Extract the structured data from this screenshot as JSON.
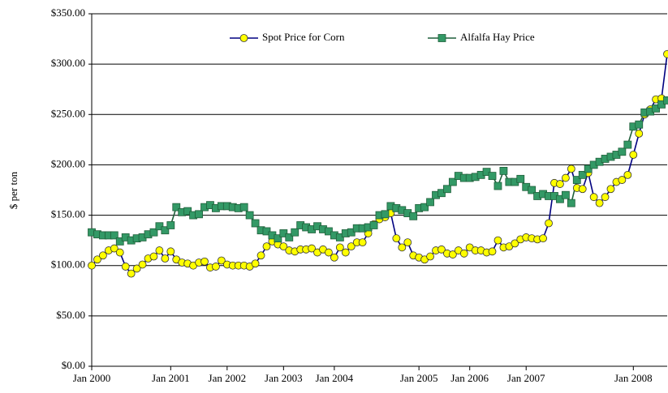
{
  "chart_data": {
    "type": "line",
    "y_label": "$ per ton",
    "categories": [
      "Jan 2000",
      null,
      null,
      null,
      null,
      null,
      null,
      null,
      null,
      null,
      null,
      null,
      null,
      null,
      "Jan 2001",
      null,
      null,
      null,
      null,
      null,
      null,
      null,
      null,
      null,
      "Jan 2002",
      null,
      null,
      null,
      null,
      null,
      null,
      null,
      null,
      null,
      "Jan 2003",
      null,
      null,
      null,
      null,
      null,
      null,
      null,
      null,
      "Jan 2004",
      null,
      null,
      null,
      null,
      null,
      null,
      null,
      null,
      null,
      null,
      null,
      null,
      null,
      null,
      "Jan 2005",
      null,
      null,
      null,
      null,
      null,
      null,
      null,
      null,
      "Jan 2006",
      null,
      null,
      null,
      null,
      null,
      null,
      null,
      null,
      null,
      "Jan 2007",
      null,
      null,
      null,
      null,
      null,
      null,
      null,
      null,
      null,
      null,
      null,
      null,
      null,
      null,
      null,
      null,
      null,
      null,
      "Jan 2008",
      null,
      null,
      null,
      null,
      null,
      null
    ],
    "series": [
      {
        "name": "Spot Price for Corn",
        "color": "#000080",
        "marker_color": "#ffff00",
        "marker": "circle",
        "values": [
          100,
          106,
          110,
          115,
          117,
          113,
          99,
          92,
          97,
          101,
          107,
          109,
          115,
          107,
          114,
          106,
          103,
          102,
          100,
          103,
          104,
          98,
          99,
          105,
          101,
          100,
          100,
          100,
          99,
          102,
          110,
          119,
          124,
          121,
          119,
          115,
          114,
          116,
          116,
          117,
          113,
          116,
          113,
          108,
          118,
          113,
          119,
          123,
          123,
          132,
          141,
          146,
          148,
          152,
          127,
          118,
          123,
          110,
          108,
          106,
          109,
          115,
          116,
          112,
          111,
          115,
          112,
          118,
          115,
          115,
          113,
          114,
          125,
          118,
          119,
          122,
          126,
          128,
          127,
          126,
          127,
          142,
          182,
          181,
          187,
          196,
          177,
          176,
          192,
          168,
          162,
          168,
          176,
          183,
          185,
          190,
          210,
          231,
          250,
          255,
          265,
          266,
          310
        ]
      },
      {
        "name": "Alfalfa Hay Price",
        "color": "#1f5f3a",
        "marker_color": "#339966",
        "marker": "square",
        "values": [
          133,
          131,
          130,
          130,
          130,
          124,
          128,
          125,
          127,
          128,
          131,
          133,
          139,
          135,
          140,
          158,
          153,
          154,
          150,
          151,
          158,
          160,
          157,
          159,
          159,
          158,
          157,
          158,
          150,
          142,
          135,
          134,
          130,
          127,
          132,
          128,
          133,
          140,
          138,
          136,
          139,
          136,
          134,
          130,
          128,
          132,
          133,
          137,
          137,
          138,
          140,
          150,
          151,
          159,
          157,
          155,
          152,
          149,
          157,
          158,
          163,
          170,
          172,
          176,
          183,
          189,
          187,
          187,
          188,
          190,
          193,
          189,
          179,
          194,
          183,
          183,
          186,
          178,
          175,
          169,
          171,
          169,
          169,
          166,
          170,
          162,
          185,
          190,
          196,
          200,
          203,
          206,
          208,
          210,
          213,
          220,
          238,
          240,
          252,
          253,
          256,
          260,
          264
        ]
      }
    ],
    "ylim": [
      0,
      350
    ],
    "yticks": [
      {
        "value": 0,
        "label": "$0.00"
      },
      {
        "value": 50,
        "label": "$50.00"
      },
      {
        "value": 100,
        "label": "$100.00"
      },
      {
        "value": 150,
        "label": "$150.00"
      },
      {
        "value": 200,
        "label": "$200.00"
      },
      {
        "value": 250,
        "label": "$250.00"
      },
      {
        "value": 300,
        "label": "$300.00"
      },
      {
        "value": 350,
        "label": "$350.00"
      }
    ],
    "grid": true
  }
}
